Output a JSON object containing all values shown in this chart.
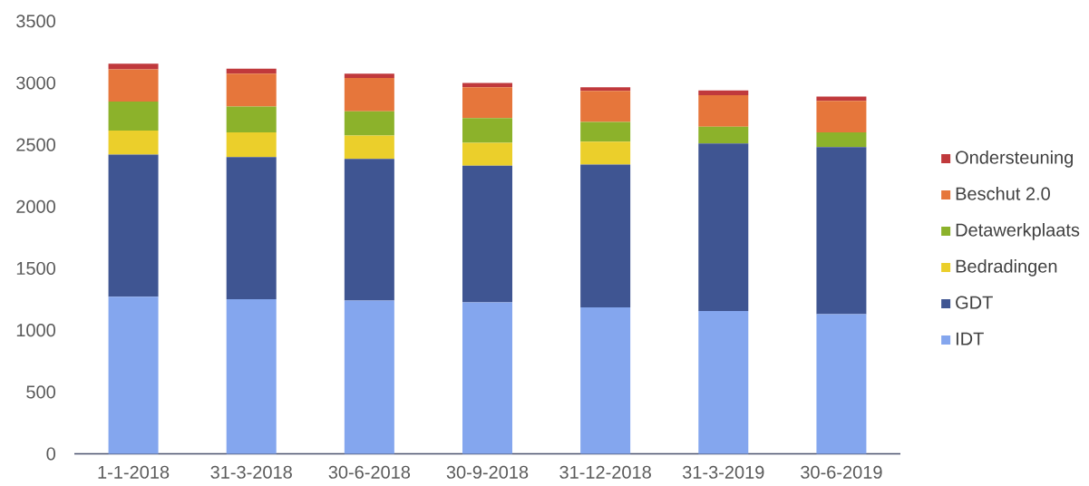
{
  "chart_data": {
    "type": "bar",
    "stacked": true,
    "categories": [
      "1-1-2018",
      "31-3-2018",
      "30-6-2018",
      "30-9-2018",
      "31-12-2018",
      "31-3-2019",
      "30-6-2019"
    ],
    "series": [
      {
        "name": "IDT",
        "color": "#84a6ee",
        "values": [
          1270,
          1250,
          1240,
          1225,
          1185,
          1155,
          1130
        ]
      },
      {
        "name": "GDT",
        "color": "#3f5592",
        "values": [
          1150,
          1150,
          1145,
          1105,
          1155,
          1355,
          1350
        ]
      },
      {
        "name": "Bedradingen",
        "color": "#ebcf2b",
        "values": [
          195,
          200,
          190,
          185,
          185,
          0,
          0
        ]
      },
      {
        "name": "Detawerkplaats",
        "color": "#8cb22b",
        "values": [
          235,
          210,
          195,
          200,
          160,
          135,
          120
        ]
      },
      {
        "name": "Beschut 2.0",
        "color": "#e6763b",
        "values": [
          260,
          265,
          270,
          250,
          250,
          255,
          255
        ]
      },
      {
        "name": "Ondersteuning",
        "color": "#c0393c",
        "values": [
          45,
          40,
          35,
          35,
          30,
          40,
          35
        ]
      }
    ],
    "ylim": [
      0,
      3500
    ],
    "yticks": [
      0,
      500,
      1000,
      1500,
      2000,
      2500,
      3000,
      3500
    ],
    "legend": "right"
  }
}
